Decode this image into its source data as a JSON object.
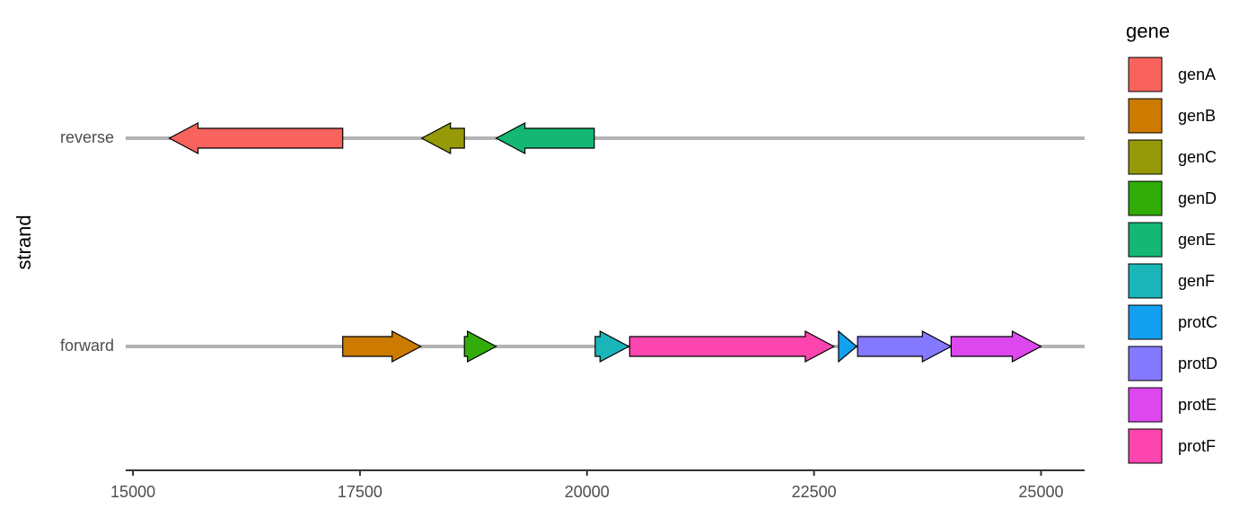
{
  "chart_data": {
    "type": "gene_arrows",
    "y_label": "strand",
    "categories": [
      "forward",
      "reverse"
    ],
    "xlim": [
      14920,
      25480
    ],
    "xticks": [
      15000,
      17500,
      20000,
      22500,
      25000
    ],
    "legend_title": "gene",
    "legend_position": "right",
    "strand_line_color": "#b3b3b3",
    "series": [
      {
        "name": "genA",
        "color": "#F8635D",
        "strand": "reverse",
        "start": 17310,
        "end": 15400
      },
      {
        "name": "genB",
        "color": "#CC7A00",
        "strand": "forward",
        "start": 17310,
        "end": 18170
      },
      {
        "name": "genC",
        "color": "#969A08",
        "strand": "reverse",
        "start": 18650,
        "end": 18180
      },
      {
        "name": "genD",
        "color": "#32AC08",
        "strand": "forward",
        "start": 18650,
        "end": 19000
      },
      {
        "name": "genE",
        "color": "#14B774",
        "strand": "reverse",
        "start": 20080,
        "end": 19000
      },
      {
        "name": "genF",
        "color": "#19B5B9",
        "strand": "forward",
        "start": 20090,
        "end": 20460
      },
      {
        "name": "protC",
        "color": "#13A0F0",
        "strand": "forward",
        "start": 22770,
        "end": 22970
      },
      {
        "name": "protD",
        "color": "#8478FF",
        "strand": "forward",
        "start": 22980,
        "end": 24010
      },
      {
        "name": "protE",
        "color": "#DD47EE",
        "strand": "forward",
        "start": 24010,
        "end": 25000
      },
      {
        "name": "protF",
        "color": "#FC45AE",
        "strand": "forward",
        "start": 20470,
        "end": 22720
      }
    ]
  }
}
